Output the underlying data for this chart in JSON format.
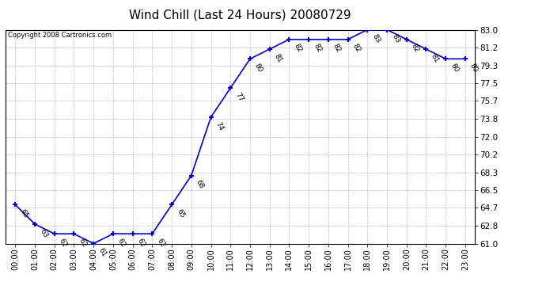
{
  "title": "Wind Chill (Last 24 Hours) 20080729",
  "copyright": "Copyright 2008 Cartronics.com",
  "hours": [
    0,
    1,
    2,
    3,
    4,
    5,
    6,
    7,
    8,
    9,
    10,
    11,
    12,
    13,
    14,
    15,
    16,
    17,
    18,
    19,
    20,
    21,
    22,
    23
  ],
  "values": [
    65,
    63,
    62,
    62,
    61,
    62,
    62,
    62,
    65,
    68,
    74,
    77,
    80,
    81,
    82,
    82,
    82,
    82,
    83,
    83,
    82,
    81,
    80,
    80
  ],
  "xlabels": [
    "00:00",
    "01:00",
    "02:00",
    "03:00",
    "04:00",
    "05:00",
    "06:00",
    "07:00",
    "08:00",
    "09:00",
    "10:00",
    "11:00",
    "12:00",
    "13:00",
    "14:00",
    "15:00",
    "16:00",
    "17:00",
    "18:00",
    "19:00",
    "20:00",
    "21:00",
    "22:00",
    "23:00"
  ],
  "yticks": [
    61.0,
    62.8,
    64.7,
    66.5,
    68.3,
    70.2,
    72.0,
    73.8,
    75.7,
    77.5,
    79.3,
    81.2,
    83.0
  ],
  "ymin": 61.0,
  "ymax": 83.0,
  "line_color": "#0000CC",
  "marker_color": "#0000CC",
  "bg_color": "#ffffff",
  "grid_color": "#bbbbbb",
  "title_fontsize": 11,
  "label_fontsize": 7,
  "annotation_fontsize": 6.5
}
